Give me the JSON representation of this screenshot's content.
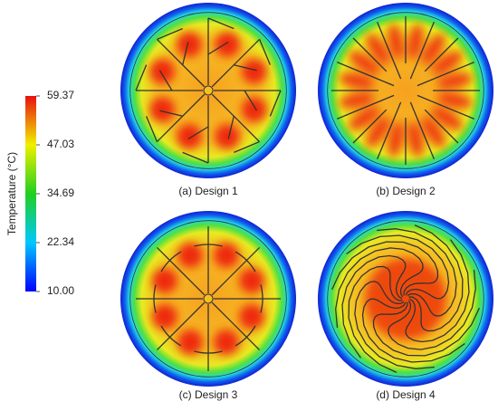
{
  "colorbar": {
    "label": "Temperature (°C)",
    "lim": [
      10,
      59.37
    ],
    "ticks": [
      {
        "value": 10,
        "label": "10.00"
      },
      22.34,
      34.69,
      47.03,
      59.37
    ]
  },
  "panels": [
    {
      "caption": "(a) Design 1"
    },
    {
      "caption": "(b) Design 2"
    },
    {
      "caption": "(c) Design 3"
    },
    {
      "caption": "(d) Design 4"
    }
  ]
}
